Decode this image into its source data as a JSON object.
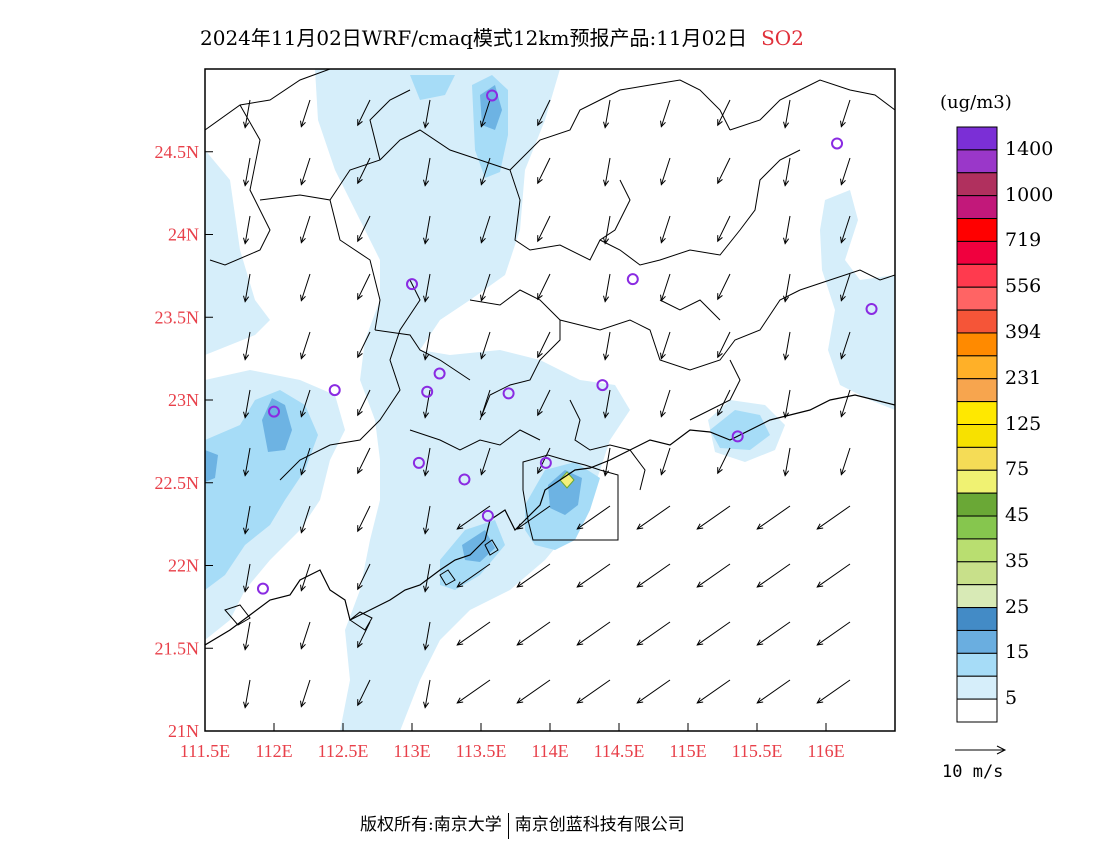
{
  "header": {
    "title": "2024年11月02日WRF/cmaq模式12km预报产品:11月02日",
    "species": "SO2"
  },
  "map": {
    "lon_range": [
      111.5,
      116.5
    ],
    "lat_range": [
      21.0,
      25.0
    ],
    "y_ticks": [
      "21N",
      "21.5N",
      "22N",
      "22.5N",
      "23N",
      "23.5N",
      "24N",
      "24.5N"
    ],
    "x_ticks": [
      "111.5E",
      "112E",
      "112.5E",
      "113E",
      "113.5E",
      "114E",
      "114.5E",
      "115E",
      "115.5E",
      "116E"
    ],
    "stations": [
      [
        113.58,
        24.84
      ],
      [
        116.08,
        24.55
      ],
      [
        113.0,
        23.7
      ],
      [
        114.6,
        23.73
      ],
      [
        116.33,
        23.55
      ],
      [
        113.2,
        23.16
      ],
      [
        112.44,
        23.06
      ],
      [
        113.11,
        23.05
      ],
      [
        113.7,
        23.04
      ],
      [
        114.38,
        23.09
      ],
      [
        112.0,
        22.93
      ],
      [
        115.36,
        22.78
      ],
      [
        113.05,
        22.62
      ],
      [
        113.38,
        22.52
      ],
      [
        113.97,
        22.62
      ],
      [
        113.55,
        22.3
      ],
      [
        111.92,
        21.86
      ]
    ],
    "colors": {
      "c5": "#d6eefa",
      "c15": "#a6dcf7",
      "c20": "#6db3e3",
      "c25": "#3f8ac6",
      "c75": "#f5f07a"
    }
  },
  "colorbar": {
    "unit": "(ug/m3)",
    "labels": [
      "1400",
      "1000",
      "719",
      "556",
      "394",
      "231",
      "125",
      "75",
      "45",
      "35",
      "25",
      "15",
      "5"
    ],
    "colors": [
      "#7b2fd6",
      "#9a37c9",
      "#b0305e",
      "#c2187a",
      "#ff0000",
      "#f0003e",
      "#ff3a4e",
      "#ff6464",
      "#f55538",
      "#ff8a00",
      "#ffb028",
      "#f7a54e",
      "#ffe800",
      "#f7e100",
      "#f5dc56",
      "#f0f272",
      "#6aa836",
      "#86c64e",
      "#b9de70",
      "#c8e08a",
      "#d8eab6",
      "#438bc6",
      "#6aaee0",
      "#a6dcf7",
      "#d6eefa",
      "#ffffff"
    ]
  },
  "wind_legend": {
    "label": "10 m/s"
  },
  "footer": {
    "left": "版权所有:南京大学",
    "right": "南京创蓝科技有限公司"
  }
}
